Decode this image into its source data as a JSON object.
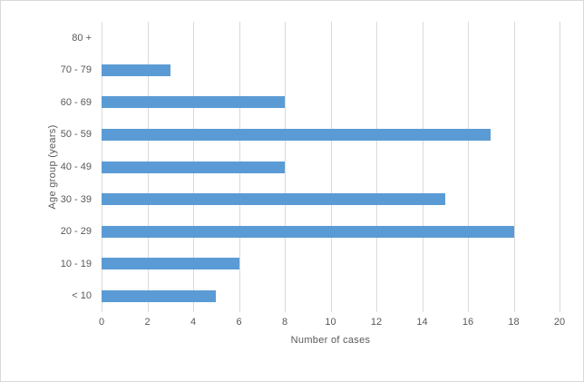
{
  "chart_data": {
    "type": "bar",
    "orientation": "horizontal",
    "categories": [
      "80 +",
      "70 - 79",
      "60 - 69",
      "50 - 59",
      "40 - 49",
      "30 - 39",
      "20 - 29",
      "10 - 19",
      "< 10"
    ],
    "values": [
      0,
      3,
      8,
      17,
      8,
      15,
      18,
      6,
      5
    ],
    "title": "",
    "xlabel": "Number of cases",
    "ylabel": "Age group (years)",
    "xlim": [
      0,
      20
    ],
    "xticks": [
      0,
      2,
      4,
      6,
      8,
      10,
      12,
      14,
      16,
      18,
      20
    ],
    "grid": "vertical-only",
    "legend": "none",
    "colors": {
      "bar": "#5b9bd5",
      "gridline": "#d9d9d9",
      "text": "#595959",
      "background": "#ffffff",
      "border": "#d9d9d9"
    }
  }
}
